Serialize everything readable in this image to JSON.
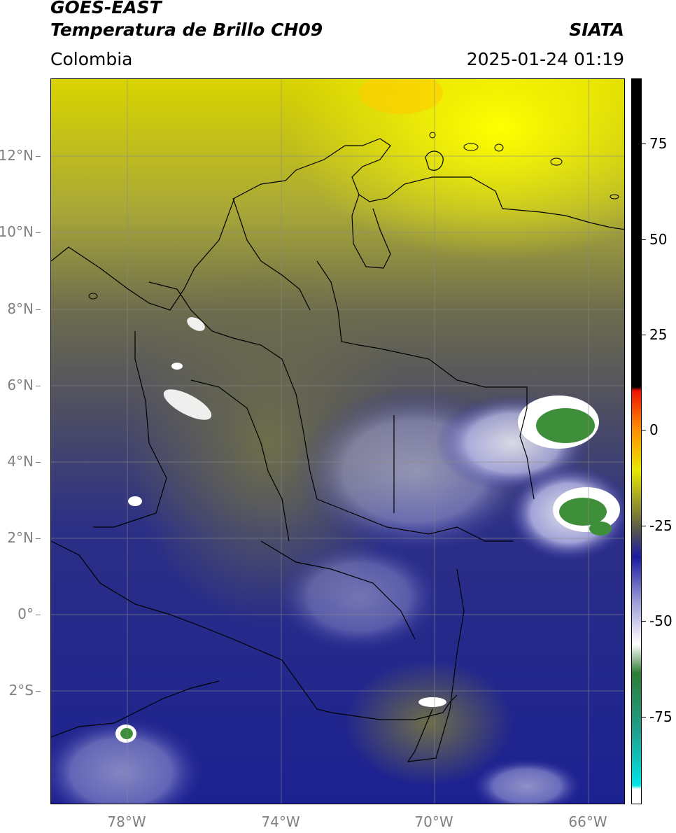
{
  "header": {
    "title_line1": "GOES-EAST",
    "title_line2": "Temperatura de Brillo CH09",
    "brand": "SIATA",
    "region": "Colombia",
    "datetime": "2025-01-24 01:19"
  },
  "axes": {
    "lat_labels": [
      "12°N",
      "10°N",
      "8°N",
      "6°N",
      "4°N",
      "2°N",
      "0°",
      "2°S"
    ],
    "lon_labels": [
      "78°W",
      "74°W",
      "70°W",
      "66°W"
    ]
  },
  "colorbar": {
    "labels": [
      "75",
      "50",
      "25",
      "0",
      "-25",
      "-50",
      "-75"
    ],
    "stops": [
      "#ffffff",
      "#00e5e5",
      "#1f9f8f",
      "#2e7d32",
      "#ffffff",
      "#9a9ad6",
      "#1a1aa0",
      "#5a5a4a",
      "#e8e800",
      "#ff8800",
      "#ee1100",
      "#000000"
    ]
  }
}
